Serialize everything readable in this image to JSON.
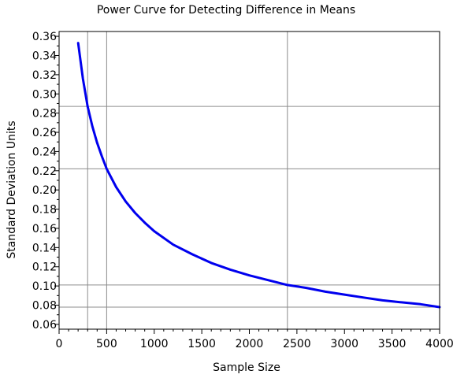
{
  "chart_data": {
    "type": "line",
    "title": "Power Curve for Detecting Difference in Means",
    "xlabel": "Sample Size",
    "ylabel": "Standard Deviation Units",
    "xlim": [
      0,
      4000
    ],
    "ylim": [
      0.055,
      0.365
    ],
    "x_ticks": [
      0,
      500,
      1000,
      1500,
      2000,
      2500,
      3000,
      3500,
      4000
    ],
    "y_ticks": [
      0.06,
      0.08,
      0.1,
      0.12,
      0.14,
      0.16,
      0.18,
      0.2,
      0.22,
      0.24,
      0.26,
      0.28,
      0.3,
      0.32,
      0.34,
      0.36
    ],
    "x_tick_labels": [
      "0",
      "500",
      "1000",
      "1500",
      "2000",
      "2500",
      "3000",
      "3500",
      "4000"
    ],
    "y_tick_labels": [
      "0.06",
      "0.08",
      "0.10",
      "0.12",
      "0.14",
      "0.16",
      "0.18",
      "0.20",
      "0.22",
      "0.24",
      "0.26",
      "0.28",
      "0.30",
      "0.32",
      "0.34",
      "0.36"
    ],
    "reference_lines": {
      "vertical_x": [
        300,
        500,
        2400,
        4000
      ],
      "horizontal_y": [
        0.287,
        0.222,
        0.101,
        0.078
      ]
    },
    "series": [
      {
        "color": "#0000ee",
        "x": [
          200,
          250,
          300,
          350,
          400,
          450,
          500,
          600,
          700,
          800,
          900,
          1000,
          1200,
          1400,
          1600,
          1800,
          2000,
          2200,
          2400,
          2600,
          2800,
          3000,
          3200,
          3400,
          3600,
          3800,
          4000
        ],
        "y": [
          0.353,
          0.316,
          0.287,
          0.266,
          0.249,
          0.235,
          0.222,
          0.203,
          0.188,
          0.176,
          0.166,
          0.157,
          0.143,
          0.133,
          0.124,
          0.117,
          0.111,
          0.106,
          0.101,
          0.098,
          0.094,
          0.091,
          0.088,
          0.085,
          0.083,
          0.081,
          0.078
        ]
      }
    ]
  }
}
